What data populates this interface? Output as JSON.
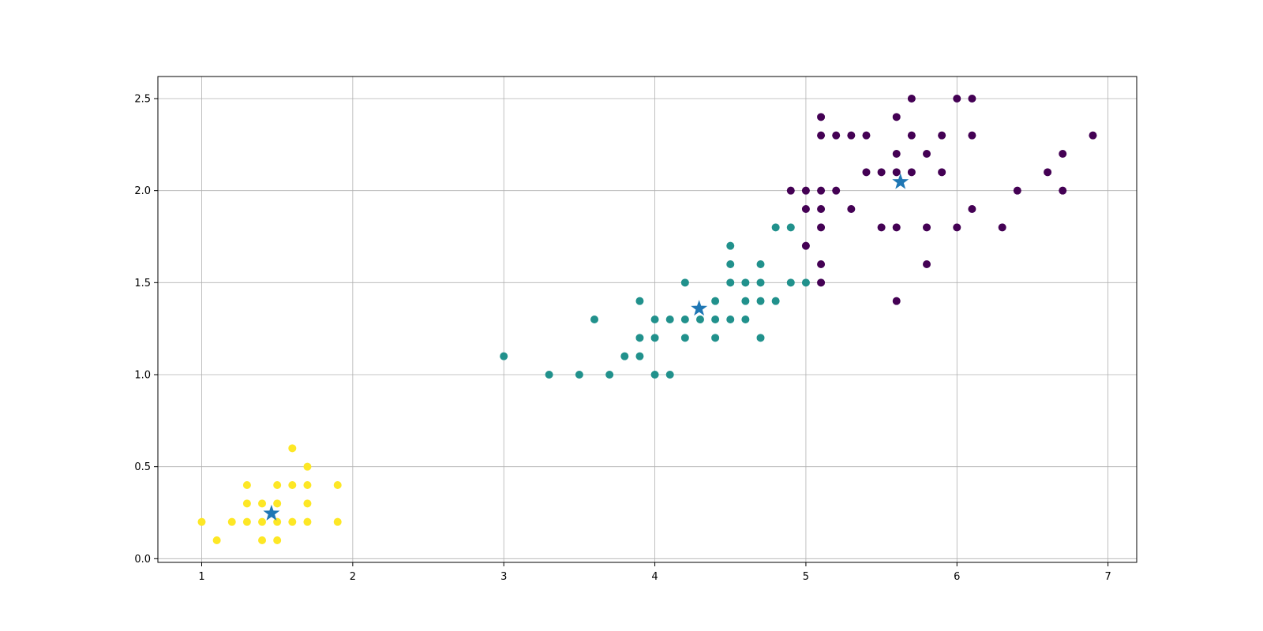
{
  "chart_data": {
    "type": "scatter",
    "title": "",
    "xlabel": "",
    "ylabel": "",
    "xlim": [
      0.71,
      7.19
    ],
    "ylim": [
      -0.02,
      2.62
    ],
    "grid": true,
    "x_ticks": [
      1,
      2,
      3,
      4,
      5,
      6,
      7
    ],
    "x_tick_labels": [
      "1",
      "2",
      "3",
      "4",
      "5",
      "6",
      "7"
    ],
    "y_ticks": [
      0.0,
      0.5,
      1.0,
      1.5,
      2.0,
      2.5
    ],
    "y_tick_labels": [
      "0.0",
      "0.5",
      "1.0",
      "1.5",
      "2.0",
      "2.5"
    ],
    "colors": {
      "cluster_low": "#fde725",
      "cluster_mid": "#21918c",
      "cluster_high": "#440154",
      "centroid": "#1f77b4"
    },
    "series": [
      {
        "color_key": "cluster_low",
        "marker": "circle",
        "points": [
          [
            1.0,
            0.2
          ],
          [
            1.1,
            0.1
          ],
          [
            1.2,
            0.2
          ],
          [
            1.3,
            0.4
          ],
          [
            1.3,
            0.3
          ],
          [
            1.3,
            0.2
          ],
          [
            1.4,
            0.3
          ],
          [
            1.4,
            0.2
          ],
          [
            1.4,
            0.1
          ],
          [
            1.5,
            0.4
          ],
          [
            1.5,
            0.3
          ],
          [
            1.5,
            0.2
          ],
          [
            1.5,
            0.1
          ],
          [
            1.6,
            0.6
          ],
          [
            1.6,
            0.4
          ],
          [
            1.6,
            0.2
          ],
          [
            1.7,
            0.5
          ],
          [
            1.7,
            0.4
          ],
          [
            1.7,
            0.3
          ],
          [
            1.7,
            0.2
          ],
          [
            1.9,
            0.4
          ],
          [
            1.9,
            0.2
          ]
        ]
      },
      {
        "color_key": "cluster_mid",
        "marker": "circle",
        "points": [
          [
            3.0,
            1.1
          ],
          [
            3.3,
            1.0
          ],
          [
            3.5,
            1.0
          ],
          [
            3.6,
            1.3
          ],
          [
            3.7,
            1.0
          ],
          [
            3.8,
            1.1
          ],
          [
            3.9,
            1.4
          ],
          [
            3.9,
            1.2
          ],
          [
            3.9,
            1.1
          ],
          [
            4.0,
            1.3
          ],
          [
            4.0,
            1.2
          ],
          [
            4.0,
            1.0
          ],
          [
            4.1,
            1.3
          ],
          [
            4.1,
            1.0
          ],
          [
            4.2,
            1.5
          ],
          [
            4.2,
            1.3
          ],
          [
            4.2,
            1.2
          ],
          [
            4.3,
            1.3
          ],
          [
            4.4,
            1.4
          ],
          [
            4.4,
            1.3
          ],
          [
            4.4,
            1.2
          ],
          [
            4.5,
            1.7
          ],
          [
            4.5,
            1.6
          ],
          [
            4.5,
            1.5
          ],
          [
            4.5,
            1.3
          ],
          [
            4.6,
            1.5
          ],
          [
            4.6,
            1.4
          ],
          [
            4.6,
            1.3
          ],
          [
            4.7,
            1.6
          ],
          [
            4.7,
            1.5
          ],
          [
            4.7,
            1.4
          ],
          [
            4.7,
            1.2
          ],
          [
            4.8,
            1.8
          ],
          [
            4.8,
            1.4
          ],
          [
            4.9,
            1.8
          ],
          [
            4.9,
            1.5
          ],
          [
            5.0,
            1.5
          ]
        ]
      },
      {
        "color_key": "cluster_high",
        "marker": "circle",
        "points": [
          [
            4.9,
            2.0
          ],
          [
            5.0,
            2.0
          ],
          [
            5.0,
            1.9
          ],
          [
            5.0,
            1.7
          ],
          [
            5.1,
            2.4
          ],
          [
            5.1,
            2.3
          ],
          [
            5.1,
            2.0
          ],
          [
            5.1,
            1.9
          ],
          [
            5.1,
            1.8
          ],
          [
            5.1,
            1.6
          ],
          [
            5.1,
            1.5
          ],
          [
            5.2,
            2.3
          ],
          [
            5.2,
            2.0
          ],
          [
            5.3,
            2.3
          ],
          [
            5.3,
            1.9
          ],
          [
            5.4,
            2.3
          ],
          [
            5.4,
            2.1
          ],
          [
            5.5,
            2.1
          ],
          [
            5.5,
            1.8
          ],
          [
            5.6,
            2.4
          ],
          [
            5.6,
            2.2
          ],
          [
            5.6,
            2.1
          ],
          [
            5.6,
            1.8
          ],
          [
            5.6,
            1.4
          ],
          [
            5.7,
            2.5
          ],
          [
            5.7,
            2.3
          ],
          [
            5.7,
            2.1
          ],
          [
            5.8,
            2.2
          ],
          [
            5.8,
            1.8
          ],
          [
            5.8,
            1.6
          ],
          [
            5.9,
            2.3
          ],
          [
            5.9,
            2.1
          ],
          [
            6.0,
            2.5
          ],
          [
            6.0,
            1.8
          ],
          [
            6.1,
            2.5
          ],
          [
            6.1,
            2.3
          ],
          [
            6.1,
            1.9
          ],
          [
            6.3,
            1.8
          ],
          [
            6.4,
            2.0
          ],
          [
            6.6,
            2.1
          ],
          [
            6.7,
            2.2
          ],
          [
            6.7,
            2.0
          ],
          [
            6.9,
            2.3
          ]
        ]
      },
      {
        "color_key": "centroid",
        "marker": "star",
        "points": [
          [
            1.462,
            0.246
          ],
          [
            4.293,
            1.359
          ],
          [
            5.626,
            2.047
          ]
        ]
      }
    ]
  }
}
